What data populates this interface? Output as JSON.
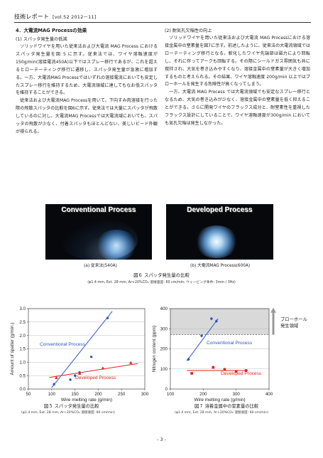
{
  "header": {
    "title": "技術レポート",
    "volume": "[vol.52 2012－11]"
  },
  "left_column": {
    "section_title": "4．大電流MAG Processの効果",
    "subsection_1": "(1) スパッタ発生量の低減",
    "paragraph_1": "ソリッドワイヤを用いた従来法および大電流 MAG Process におけるスパッタ発生量を図 5 に示す。従来法では、ワイヤ溶融速度が150g/min(溶接電流450A)以下ではスプレー移行であるが、これを超えるとローテーティング移行に遷移し、スパッタ発生量が急激に増加する。一方、大電流MAG Processではいずれの溶接電流においても安定したスプレー移行を維持するため、大電流領域に達してもなお低スパッタを維持することができる。",
    "paragraph_2": "従来法および大電流MAG Processを用いて、下向すみ肉溶接を行った際の飛散スパッタの比較を図6に示す。従来法では大量にスパッタが飛散しているのに対し、大電流MAG Processでは大電流域においても、スパッタの飛散が少なく、付着スパッタもほとんどない、美しいビード外観が得られる。"
  },
  "right_column": {
    "subsection_2": "(2) 耐気孔欠陥性の向上",
    "paragraph_1": "ソリッドワイヤを用いた従来法および大電流 MAG Processにおける溶接金属中の窒素量を図7に示す。前述したように、従来法の大電流領域ではローテーティング移行となる。軟化したワイヤ先端部は磁力により回転し、それに伴ってアークも回転する。その際にシールドガス雰囲気も共に撹拌され、大気を巻き込みやすくなり、溶接金属中の窒素量が大きく増加するものと考えられる。その結果、ワイヤ溶融速度 200g/min 以上ではブローホールを発生する危険性が高くなってしまう。",
    "paragraph_2": "一方、大電流 MAG Process では大電流領域でも安定なスプレー移行となるため、大気の巻き込みが少なく、溶接金属中の窒素量を低く抑えることができる。さらに開発ワイヤのフラックス成分と、耐窒素性を重視したフラックス設計にしていることで、ワイヤ溶融速度が300g/min においても気孔欠陥は発生しなかった。"
  },
  "figure6": {
    "photo_left_label": "Conventional Process",
    "photo_right_label": "Developed Process",
    "caption_left": "(a) 従来法(540A)",
    "caption_right": "(b) 大電流MAG Process(600A)",
    "title": "図６ スパッタ発生量の比較",
    "subtitle": "(φ1.4 mm, Ext. 28 mm, Ar+20%CO₂  溶接速度: 60 cm/min, ウィービング条件: 3mm / 3Hz)"
  },
  "figure5": {
    "title": "図５ スパッタ発生量の比較",
    "subtitle": "(φ1.4 mm, Ext. 28 mm, Ar+20%CO₂  溶接速度: 60 cm/min)"
  },
  "figure7": {
    "title": "図７ 溶着金属中の窒素量の比較",
    "subtitle": "(φ1.4 mm, Ext. 28 mm, Ar+20%CO₂  溶接速度: 60 cm/min)",
    "region_label_line1": "ブローホール",
    "region_label_line2": "発生領域"
  },
  "page_number": "- 3 -",
  "chart_data": [
    {
      "type": "scatter",
      "xlabel": "Wire melting rate (g/min)",
      "ylabel": "Amount of spatter (g/min.)",
      "xlim": [
        50,
        300
      ],
      "ylim": [
        0,
        3.0
      ],
      "xticks": [
        50,
        100,
        150,
        200,
        250,
        300
      ],
      "yticks": [
        0.0,
        0.5,
        1.0,
        1.5,
        2.0,
        2.5,
        3.0
      ],
      "series": [
        {
          "name": "Conventional Process",
          "color": "#2a56c6",
          "marker": "circle",
          "points": [
            [
              105,
              0.18
            ],
            [
              140,
              0.35
            ],
            [
              150,
              0.5
            ],
            [
              160,
              0.62
            ],
            [
              185,
              1.2
            ],
            [
              220,
              2.65
            ]
          ],
          "trend": [
            [
              100,
              0.05
            ],
            [
              230,
              2.9
            ]
          ]
        },
        {
          "name": "Developed Process",
          "color": "#e0231c",
          "marker": "triangle",
          "points": [
            [
              110,
              0.42
            ],
            [
              160,
              0.58
            ],
            [
              210,
              0.78
            ],
            [
              270,
              0.98
            ]
          ],
          "trend": [
            [
              95,
              0.43
            ],
            [
              285,
              0.95
            ]
          ]
        }
      ]
    },
    {
      "type": "scatter",
      "xlabel": "Wire melting rate (g/min)",
      "ylabel": "Nitrogen content (ppm)",
      "xlim": [
        100,
        400
      ],
      "ylim": [
        0,
        400
      ],
      "xticks": [
        100,
        200,
        300,
        400
      ],
      "yticks": [
        0,
        100,
        200,
        300,
        400
      ],
      "blowhole_region": [
        270,
        400
      ],
      "series": [
        {
          "name": "Conventional Process",
          "color": "#2a56c6",
          "marker": "diamond",
          "points": [
            [
              155,
              148
            ],
            [
              195,
              265
            ],
            [
              225,
              350
            ],
            [
              240,
              338
            ]
          ],
          "trend": [
            [
              150,
              140
            ],
            [
              245,
              350
            ]
          ]
        },
        {
          "name": "Developed Process",
          "color": "#e0231c",
          "marker": "square",
          "points": [
            [
              165,
              78
            ],
            [
              230,
              108
            ],
            [
              265,
              98
            ],
            [
              300,
              88
            ],
            [
              330,
              92
            ]
          ],
          "trend": [
            [
              150,
              92
            ],
            [
              335,
              92
            ]
          ]
        }
      ]
    }
  ]
}
